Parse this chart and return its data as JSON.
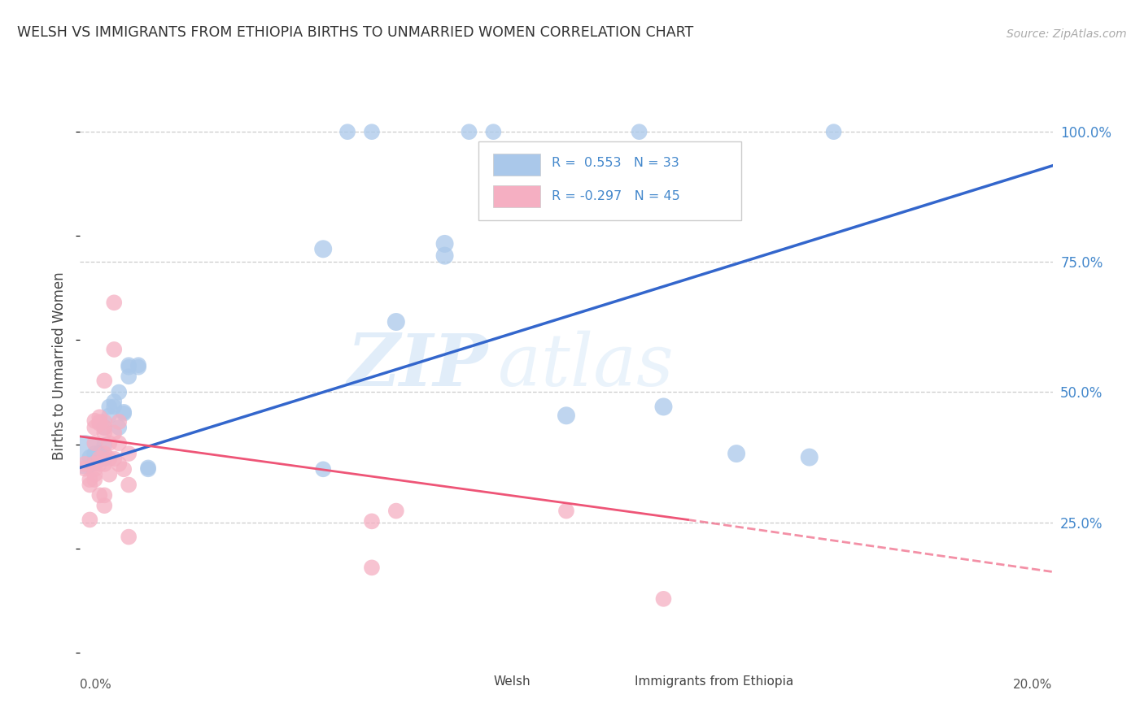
{
  "title": "WELSH VS IMMIGRANTS FROM ETHIOPIA BIRTHS TO UNMARRIED WOMEN CORRELATION CHART",
  "source": "Source: ZipAtlas.com",
  "ylabel": "Births to Unmarried Women",
  "watermark_zip": "ZIP",
  "watermark_atlas": "atlas",
  "legend_welsh_r": " 0.553",
  "legend_welsh_n": "33",
  "legend_eth_r": "-0.297",
  "legend_eth_n": "45",
  "welsh_color": "#aac8ea",
  "eth_color": "#f5afc2",
  "welsh_line_color": "#3366cc",
  "eth_line_color": "#ee5577",
  "ytick_color": "#4488cc",
  "xmin": 0.0,
  "xmax": 0.2,
  "ymin": 0.0,
  "ymax": 1.1,
  "yticks": [
    0.25,
    0.5,
    0.75,
    1.0
  ],
  "ytick_labels": [
    "25.0%",
    "50.0%",
    "75.0%",
    "100.0%"
  ],
  "welsh_points": [
    [
      0.001,
      0.38,
      1200
    ],
    [
      0.002,
      0.375,
      200
    ],
    [
      0.003,
      0.365,
      200
    ],
    [
      0.003,
      0.382,
      200
    ],
    [
      0.004,
      0.372,
      200
    ],
    [
      0.004,
      0.382,
      200
    ],
    [
      0.005,
      0.398,
      200
    ],
    [
      0.005,
      0.432,
      200
    ],
    [
      0.005,
      0.372,
      200
    ],
    [
      0.006,
      0.472,
      200
    ],
    [
      0.006,
      0.455,
      200
    ],
    [
      0.007,
      0.482,
      200
    ],
    [
      0.007,
      0.472,
      200
    ],
    [
      0.008,
      0.5,
      200
    ],
    [
      0.008,
      0.432,
      200
    ],
    [
      0.009,
      0.462,
      200
    ],
    [
      0.009,
      0.459,
      200
    ],
    [
      0.01,
      0.552,
      200
    ],
    [
      0.01,
      0.548,
      200
    ],
    [
      0.01,
      0.53,
      200
    ],
    [
      0.012,
      0.552,
      200
    ],
    [
      0.012,
      0.548,
      200
    ],
    [
      0.014,
      0.355,
      200
    ],
    [
      0.014,
      0.352,
      200
    ],
    [
      0.05,
      0.775,
      250
    ],
    [
      0.05,
      0.352,
      200
    ],
    [
      0.065,
      0.635,
      250
    ],
    [
      0.075,
      0.785,
      250
    ],
    [
      0.075,
      0.762,
      250
    ],
    [
      0.1,
      0.455,
      250
    ],
    [
      0.12,
      0.472,
      250
    ],
    [
      0.135,
      0.382,
      250
    ],
    [
      0.15,
      0.375,
      250
    ]
  ],
  "eth_points": [
    [
      0.001,
      0.353,
      200
    ],
    [
      0.001,
      0.362,
      200
    ],
    [
      0.002,
      0.322,
      200
    ],
    [
      0.002,
      0.332,
      200
    ],
    [
      0.002,
      0.255,
      200
    ],
    [
      0.003,
      0.445,
      200
    ],
    [
      0.003,
      0.432,
      200
    ],
    [
      0.003,
      0.402,
      200
    ],
    [
      0.003,
      0.363,
      200
    ],
    [
      0.003,
      0.352,
      200
    ],
    [
      0.003,
      0.342,
      200
    ],
    [
      0.003,
      0.332,
      200
    ],
    [
      0.004,
      0.452,
      200
    ],
    [
      0.004,
      0.443,
      200
    ],
    [
      0.004,
      0.44,
      200
    ],
    [
      0.004,
      0.373,
      200
    ],
    [
      0.004,
      0.363,
      200
    ],
    [
      0.004,
      0.302,
      200
    ],
    [
      0.005,
      0.522,
      200
    ],
    [
      0.005,
      0.443,
      200
    ],
    [
      0.005,
      0.432,
      200
    ],
    [
      0.005,
      0.422,
      200
    ],
    [
      0.005,
      0.382,
      200
    ],
    [
      0.005,
      0.362,
      200
    ],
    [
      0.005,
      0.302,
      200
    ],
    [
      0.005,
      0.282,
      200
    ],
    [
      0.006,
      0.402,
      200
    ],
    [
      0.006,
      0.372,
      200
    ],
    [
      0.006,
      0.342,
      200
    ],
    [
      0.007,
      0.672,
      200
    ],
    [
      0.007,
      0.582,
      200
    ],
    [
      0.007,
      0.422,
      200
    ],
    [
      0.007,
      0.372,
      200
    ],
    [
      0.008,
      0.443,
      200
    ],
    [
      0.008,
      0.402,
      200
    ],
    [
      0.008,
      0.362,
      200
    ],
    [
      0.009,
      0.352,
      200
    ],
    [
      0.01,
      0.382,
      200
    ],
    [
      0.01,
      0.322,
      200
    ],
    [
      0.01,
      0.222,
      200
    ],
    [
      0.06,
      0.252,
      200
    ],
    [
      0.06,
      0.163,
      200
    ],
    [
      0.065,
      0.272,
      200
    ],
    [
      0.1,
      0.272,
      200
    ],
    [
      0.12,
      0.103,
      200
    ]
  ],
  "welsh_top_points": [
    [
      0.055,
      1.0
    ],
    [
      0.06,
      1.0
    ],
    [
      0.08,
      1.0
    ],
    [
      0.085,
      1.0
    ],
    [
      0.115,
      1.0
    ],
    [
      0.155,
      1.0
    ]
  ],
  "welsh_line_endpoints": [
    [
      0.0,
      0.355
    ],
    [
      0.2,
      0.935
    ]
  ],
  "eth_line_solid_endpoints": [
    [
      0.0,
      0.415
    ],
    [
      0.125,
      0.255
    ]
  ],
  "eth_line_dashed_endpoints": [
    [
      0.125,
      0.255
    ],
    [
      0.2,
      0.155
    ]
  ]
}
